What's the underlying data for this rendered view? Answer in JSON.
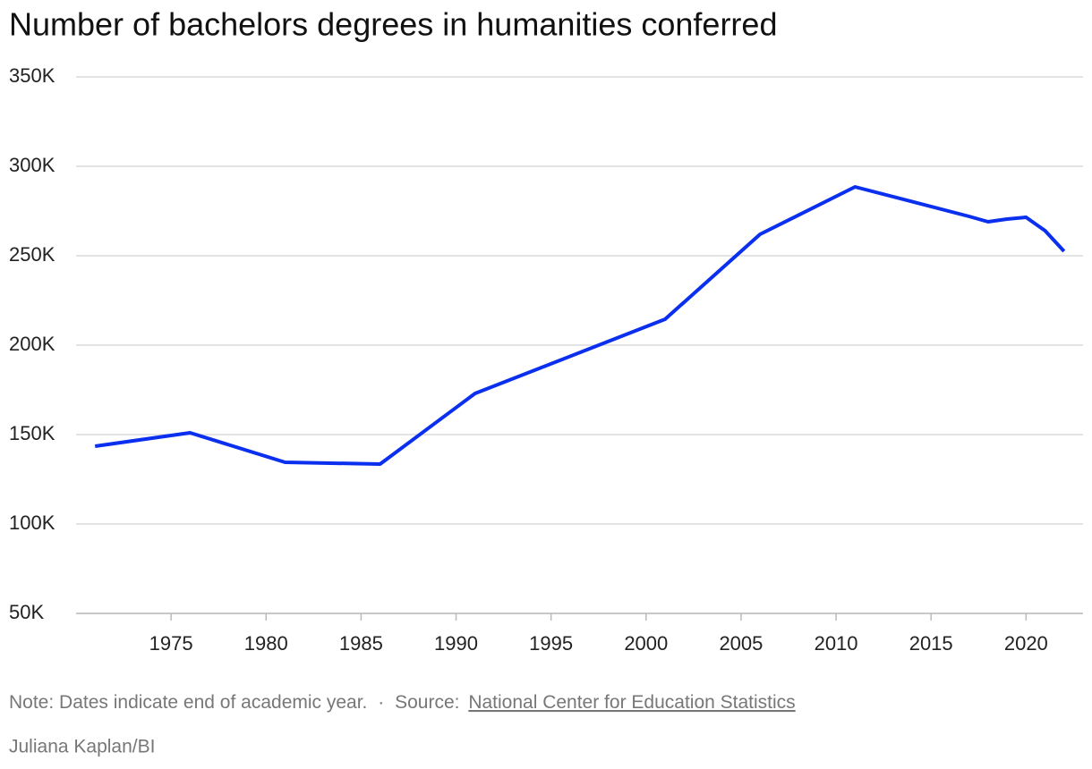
{
  "chart_data": {
    "type": "line",
    "title": "Number of bachelors degrees in humanities conferred",
    "x": [
      1971,
      1976,
      1981,
      1986,
      1991,
      2001,
      2006,
      2011,
      2017,
      2018,
      2019,
      2020,
      2021,
      2022
    ],
    "series": [
      {
        "name": "Bachelors degrees in humanities",
        "color": "#0a2fee",
        "values": [
          143500,
          151000,
          134500,
          133500,
          173000,
          214500,
          262000,
          288500,
          272000,
          269000,
          270500,
          271500,
          264000,
          252500
        ]
      }
    ],
    "xlim": [
      1970,
      2023
    ],
    "xticks": [
      1975,
      1980,
      1985,
      1990,
      1995,
      2000,
      2005,
      2010,
      2015,
      2020
    ],
    "ylim": [
      50000,
      350000
    ],
    "yticks": [
      {
        "value": 50000,
        "label": "50K"
      },
      {
        "value": 100000,
        "label": "100K"
      },
      {
        "value": 150000,
        "label": "150K"
      },
      {
        "value": 200000,
        "label": "200K"
      },
      {
        "value": 250000,
        "label": "250K"
      },
      {
        "value": 300000,
        "label": "300K"
      },
      {
        "value": 350000,
        "label": "350K"
      }
    ],
    "grid": true,
    "note": "Note: Dates indicate end of academic year.",
    "separator": "·",
    "source_label": "Source:",
    "source_link": "National Center for Education Statistics",
    "credit": "Juliana Kaplan/BI"
  }
}
